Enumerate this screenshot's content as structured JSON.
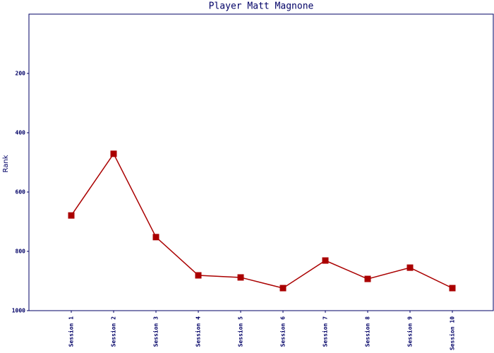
{
  "chart_data": {
    "type": "line",
    "title": "Player Matt Magnone",
    "y_label": "Rank",
    "categories": [
      "Session 1",
      "Session 2",
      "Session 3",
      "Session 4",
      "Session 5",
      "Session 6",
      "Session 7",
      "Session 8",
      "Session 9",
      "Session 10"
    ],
    "series": [
      {
        "name": "Rank",
        "color": "#aa0000",
        "values": [
          679,
          471,
          752,
          881,
          888,
          924,
          831,
          893,
          855,
          924
        ]
      }
    ],
    "ylim": [
      0,
      1000
    ],
    "yticks": [
      200,
      400,
      600,
      800,
      1000
    ],
    "y_inverted": true,
    "grid": false
  }
}
